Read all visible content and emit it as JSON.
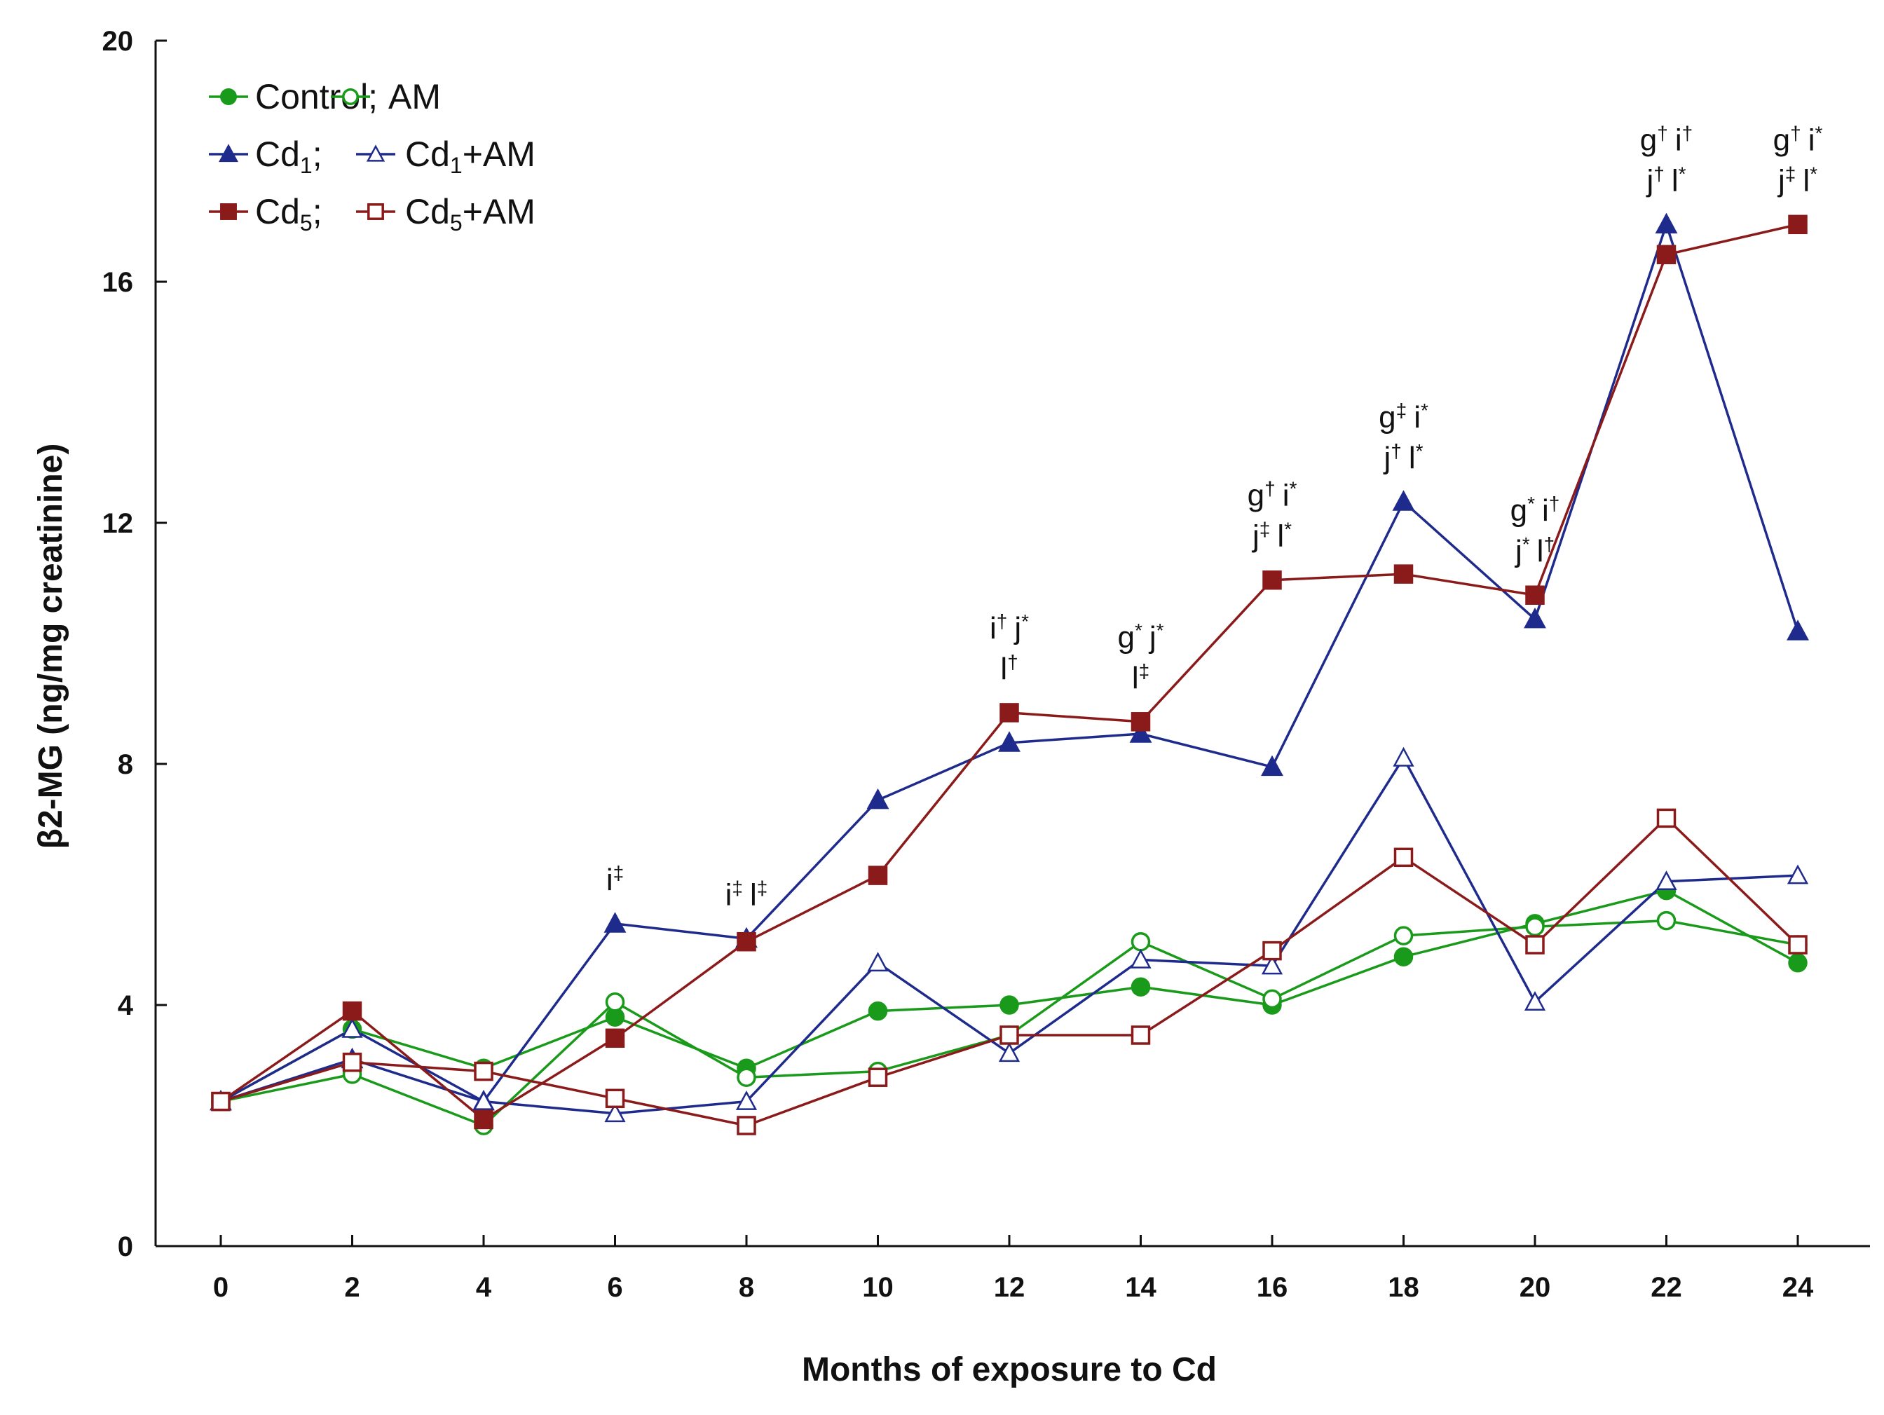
{
  "chart_data": {
    "type": "line",
    "title": "",
    "xlabel": "Months of exposure to Cd",
    "ylabel": "β2-MG (ng/mg creatinine)",
    "xlim": [
      0,
      24
    ],
    "ylim": [
      0,
      20
    ],
    "x": [
      0,
      2,
      4,
      6,
      8,
      10,
      12,
      14,
      16,
      18,
      20,
      22,
      24
    ],
    "xticks": [
      "0",
      "2",
      "4",
      "6",
      "8",
      "10",
      "12",
      "14",
      "16",
      "18",
      "20",
      "22",
      "24"
    ],
    "yticks": [
      "0",
      "4",
      "8",
      "12",
      "16",
      "20"
    ],
    "yticks_values": [
      0,
      4,
      8,
      12,
      16,
      20
    ],
    "legend_position": "top-left",
    "series": [
      {
        "name": "Control",
        "values": [
          2.4,
          3.6,
          2.95,
          3.8,
          2.95,
          3.9,
          4.0,
          4.3,
          4.0,
          4.8,
          5.35,
          5.9,
          4.7
        ],
        "color": "#1a9a1a",
        "marker": "circle",
        "filled": true
      },
      {
        "name": "AM",
        "values": [
          2.4,
          2.85,
          2.0,
          4.05,
          2.8,
          2.9,
          3.5,
          5.05,
          4.1,
          5.15,
          5.3,
          5.4,
          5.0
        ],
        "color": "#1a9a1a",
        "marker": "circle",
        "filled": false
      },
      {
        "name": "Cd1",
        "values": [
          2.4,
          3.1,
          2.4,
          5.35,
          5.1,
          7.4,
          8.35,
          8.5,
          7.95,
          12.35,
          10.4,
          16.95,
          10.2
        ],
        "color": "#1f2b8c",
        "marker": "triangle",
        "filled": true
      },
      {
        "name": "Cd1+AM",
        "values": [
          2.4,
          3.6,
          2.4,
          2.2,
          2.4,
          4.7,
          3.2,
          4.75,
          4.65,
          8.1,
          4.05,
          6.05,
          6.15
        ],
        "color": "#1f2b8c",
        "marker": "triangle",
        "filled": false
      },
      {
        "name": "Cd5",
        "values": [
          2.4,
          3.9,
          2.1,
          3.45,
          5.05,
          6.15,
          8.85,
          8.7,
          11.05,
          11.15,
          10.8,
          16.45,
          16.95
        ],
        "color": "#8b1a1a",
        "marker": "square",
        "filled": true
      },
      {
        "name": "Cd5+AM",
        "values": [
          2.4,
          3.05,
          2.9,
          2.45,
          2.0,
          2.8,
          3.5,
          3.5,
          4.9,
          6.45,
          5.0,
          7.1,
          5.0
        ],
        "color": "#8b1a1a",
        "marker": "square",
        "filled": false
      }
    ],
    "legend": [
      {
        "label": "Control;",
        "series": 0
      },
      {
        "label": "AM",
        "series": 1
      },
      {
        "label": "Cd",
        "sub": "1",
        "tail": ";",
        "series": 2
      },
      {
        "label": "Cd",
        "sub": "1",
        "tail": "+AM",
        "series": 3
      },
      {
        "label": "Cd",
        "sub": "5",
        "tail": ";",
        "series": 4
      },
      {
        "label": "Cd",
        "sub": "5",
        "tail": "+AM",
        "series": 5
      }
    ],
    "annotations": [
      {
        "x": 6,
        "lines": [
          [
            [
              "i",
              "‡"
            ]
          ]
        ]
      },
      {
        "x": 8,
        "lines": [
          [
            [
              "i",
              "‡"
            ],
            [
              "l",
              "‡"
            ]
          ]
        ]
      },
      {
        "x": 12,
        "lines": [
          [
            [
              "i",
              "†"
            ],
            [
              "j",
              "*"
            ]
          ],
          [
            [
              "l",
              "†"
            ]
          ]
        ]
      },
      {
        "x": 14,
        "lines": [
          [
            [
              "g",
              "*"
            ],
            [
              "j",
              "*"
            ]
          ],
          [
            [
              "l",
              "‡"
            ]
          ]
        ]
      },
      {
        "x": 16,
        "lines": [
          [
            [
              "g",
              "†"
            ],
            [
              "i",
              "*"
            ]
          ],
          [
            [
              "j",
              "‡"
            ],
            [
              "l",
              "*"
            ]
          ]
        ]
      },
      {
        "x": 18,
        "lines": [
          [
            [
              "g",
              "‡"
            ],
            [
              "i",
              "*"
            ]
          ],
          [
            [
              "j",
              "†"
            ],
            [
              "l",
              "*"
            ]
          ]
        ]
      },
      {
        "x": 20,
        "lines": [
          [
            [
              "g",
              "*"
            ],
            [
              "i",
              "†"
            ]
          ],
          [
            [
              "j",
              "*"
            ],
            [
              "l",
              "†"
            ]
          ]
        ]
      },
      {
        "x": 22,
        "lines": [
          [
            [
              "g",
              "†"
            ],
            [
              "i",
              "†"
            ]
          ],
          [
            [
              "j",
              "†"
            ],
            [
              "l",
              "*"
            ]
          ]
        ]
      },
      {
        "x": 24,
        "lines": [
          [
            [
              "g",
              "†"
            ],
            [
              "i",
              "*"
            ]
          ],
          [
            [
              "j",
              "‡"
            ],
            [
              "l",
              "*"
            ]
          ]
        ]
      }
    ]
  }
}
